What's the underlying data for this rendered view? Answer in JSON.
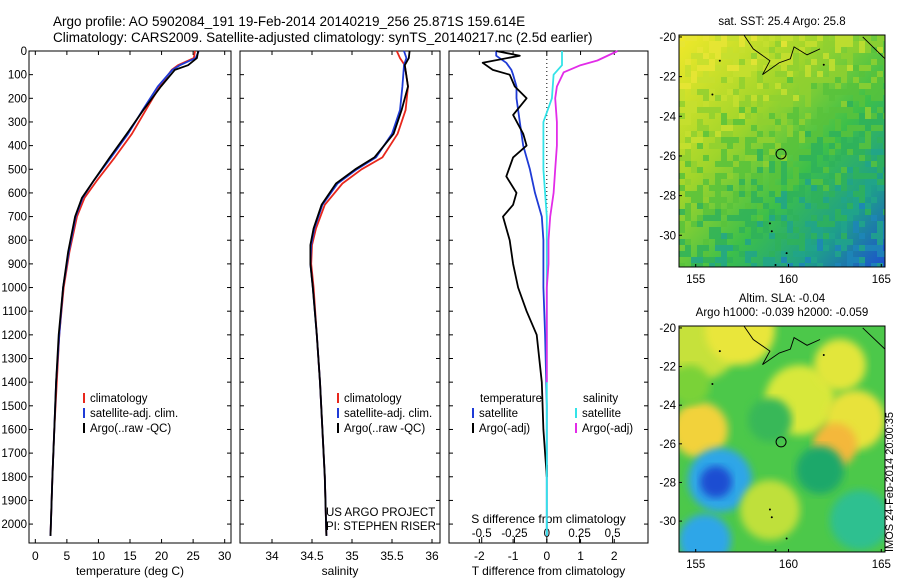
{
  "header": {
    "line1": "Argo profile: AO 5902084_191 19-Feb-2014 20140219_256 25.871S 159.614E",
    "line2": "Climatology: CARS2009. Satellite-adjusted climatology: synTS_20140217.nc (2.5d earlier)"
  },
  "footer": {
    "project": "US ARGO PROJECT",
    "pi": "PI: STEPHEN RISER",
    "stamp": "IMOS 24-Feb-2014 20:00:35"
  },
  "colors": {
    "climatology": "#e8271c",
    "satellite": "#1f3bd6",
    "argo": "#000000",
    "sal_satellite": "#33e3e8",
    "sal_argo": "#e22ce8",
    "marker": "#000000"
  },
  "chart_data": [
    {
      "type": "line",
      "panel": "temperature",
      "xlabel": "temperature (deg C)",
      "ylim": [
        2080,
        0
      ],
      "xlim": [
        -1,
        31
      ],
      "yticks": [
        0,
        100,
        200,
        300,
        400,
        500,
        600,
        700,
        800,
        900,
        1000,
        1100,
        1200,
        1300,
        1400,
        1500,
        1600,
        1700,
        1800,
        1900,
        2000
      ],
      "xticks": [
        0,
        5,
        10,
        15,
        20,
        25,
        30
      ],
      "legend": [
        "climatology",
        "satellite-adj. clim.",
        "Argo(..raw -QC)"
      ],
      "series": [
        {
          "name": "climatology",
          "color": "#e8271c",
          "points": [
            [
              25.3,
              0
            ],
            [
              25.1,
              30
            ],
            [
              22.6,
              60
            ],
            [
              21.6,
              80
            ],
            [
              19.7,
              150
            ],
            [
              17.5,
              250
            ],
            [
              15.3,
              350
            ],
            [
              12.6,
              450
            ],
            [
              9.7,
              550
            ],
            [
              7.8,
              620
            ],
            [
              6.6,
              700
            ],
            [
              5.4,
              850
            ],
            [
              4.5,
              1000
            ],
            [
              3.8,
              1200
            ],
            [
              3.4,
              1400
            ],
            [
              3.0,
              1600
            ],
            [
              2.7,
              1800
            ],
            [
              2.4,
              2050
            ]
          ]
        },
        {
          "name": "satellite-adj. clim.",
          "color": "#1f3bd6",
          "points": [
            [
              25.9,
              0
            ],
            [
              25.4,
              30
            ],
            [
              22.9,
              60
            ],
            [
              21.7,
              80
            ],
            [
              19.4,
              150
            ],
            [
              17.0,
              250
            ],
            [
              14.7,
              350
            ],
            [
              12.0,
              450
            ],
            [
              9.2,
              550
            ],
            [
              7.5,
              620
            ],
            [
              6.4,
              700
            ],
            [
              5.3,
              850
            ],
            [
              4.4,
              1000
            ],
            [
              3.8,
              1200
            ],
            [
              3.3,
              1400
            ],
            [
              3.0,
              1600
            ],
            [
              2.7,
              1800
            ],
            [
              2.4,
              2050
            ]
          ]
        },
        {
          "name": "Argo(..raw -QC)",
          "color": "#000000",
          "points": [
            [
              25.8,
              0
            ],
            [
              25.6,
              30
            ],
            [
              24.2,
              60
            ],
            [
              22.1,
              80
            ],
            [
              19.9,
              150
            ],
            [
              17.1,
              250
            ],
            [
              14.5,
              350
            ],
            [
              11.8,
              450
            ],
            [
              9.2,
              550
            ],
            [
              7.4,
              620
            ],
            [
              6.3,
              700
            ],
            [
              5.2,
              850
            ],
            [
              4.4,
              1000
            ],
            [
              3.7,
              1200
            ],
            [
              3.3,
              1400
            ],
            [
              3.0,
              1600
            ],
            [
              2.7,
              1800
            ],
            [
              2.4,
              2050
            ]
          ]
        }
      ]
    },
    {
      "type": "line",
      "panel": "salinity",
      "xlabel": "salinity",
      "ylim": [
        2080,
        0
      ],
      "xlim": [
        33.6,
        36.1
      ],
      "xticks": [
        34,
        34.5,
        35,
        35.5,
        36
      ],
      "legend": [
        "climatology",
        "satellite-adj. clim.",
        "Argo(..raw -QC)"
      ],
      "series": [
        {
          "name": "climatology",
          "color": "#e8271c",
          "points": [
            [
              35.56,
              0
            ],
            [
              35.6,
              30
            ],
            [
              35.66,
              60
            ],
            [
              35.7,
              150
            ],
            [
              35.67,
              250
            ],
            [
              35.57,
              350
            ],
            [
              35.38,
              450
            ],
            [
              35.12,
              500
            ],
            [
              34.88,
              560
            ],
            [
              34.66,
              650
            ],
            [
              34.55,
              750
            ],
            [
              34.5,
              820
            ],
            [
              34.49,
              900
            ],
            [
              34.52,
              1000
            ],
            [
              34.56,
              1200
            ],
            [
              34.6,
              1400
            ],
            [
              34.63,
              1600
            ],
            [
              34.66,
              1800
            ],
            [
              34.68,
              2050
            ]
          ]
        },
        {
          "name": "satellite-adj. clim.",
          "color": "#1f3bd6",
          "points": [
            [
              35.65,
              0
            ],
            [
              35.68,
              30
            ],
            [
              35.65,
              60
            ],
            [
              35.63,
              150
            ],
            [
              35.6,
              250
            ],
            [
              35.5,
              350
            ],
            [
              35.3,
              450
            ],
            [
              35.06,
              500
            ],
            [
              34.82,
              560
            ],
            [
              34.63,
              650
            ],
            [
              34.53,
              750
            ],
            [
              34.49,
              820
            ],
            [
              34.48,
              900
            ],
            [
              34.51,
              1000
            ],
            [
              34.56,
              1200
            ],
            [
              34.6,
              1400
            ],
            [
              34.63,
              1600
            ],
            [
              34.66,
              1800
            ],
            [
              34.68,
              2050
            ]
          ]
        },
        {
          "name": "Argo(..raw -QC)",
          "color": "#000000",
          "points": [
            [
              35.72,
              0
            ],
            [
              35.71,
              30
            ],
            [
              35.66,
              60
            ],
            [
              35.7,
              150
            ],
            [
              35.62,
              250
            ],
            [
              35.52,
              350
            ],
            [
              35.28,
              450
            ],
            [
              35.04,
              500
            ],
            [
              34.8,
              560
            ],
            [
              34.62,
              650
            ],
            [
              34.52,
              750
            ],
            [
              34.48,
              820
            ],
            [
              34.48,
              900
            ],
            [
              34.51,
              1000
            ],
            [
              34.56,
              1200
            ],
            [
              34.6,
              1400
            ],
            [
              34.63,
              1600
            ],
            [
              34.66,
              1800
            ],
            [
              34.68,
              2050
            ]
          ]
        }
      ]
    },
    {
      "type": "line",
      "panel": "difference",
      "xlabel": "T difference from climatology",
      "xlabel_top": "S difference from climatology",
      "ylim": [
        2080,
        0
      ],
      "xlim": [
        -2.9,
        3.0
      ],
      "xticks": [
        -2,
        -1,
        0,
        1,
        2
      ],
      "top_ticks": [
        {
          "label": "-0.5",
          "t": -1.93
        },
        {
          "label": "-0.25",
          "t": -0.96
        },
        {
          "label": "0",
          "t": 0
        },
        {
          "label": "0.25",
          "t": 0.97
        },
        {
          "label": "0.5",
          "t": 1.95
        }
      ],
      "legend_t": [
        "temperature",
        "satellite",
        "Argo(-adj)"
      ],
      "legend_s": [
        "salinity",
        "satellite",
        "Argo(-adj)"
      ],
      "series": [
        {
          "name": "satellite",
          "color": "#1f3bd6",
          "points": [
            [
              -1.5,
              0
            ],
            [
              -1.5,
              20
            ],
            [
              -1.2,
              50
            ],
            [
              -1.05,
              80
            ],
            [
              -1.0,
              100
            ],
            [
              -0.9,
              150
            ],
            [
              -0.9,
              200
            ],
            [
              -0.8,
              300
            ],
            [
              -0.7,
              400
            ],
            [
              -0.5,
              500
            ],
            [
              -0.35,
              600
            ],
            [
              -0.15,
              700
            ],
            [
              -0.1,
              800
            ],
            [
              -0.1,
              1000
            ],
            [
              -0.05,
              1200
            ],
            [
              0,
              1500
            ],
            [
              0,
              1800
            ],
            [
              0,
              2050
            ]
          ]
        },
        {
          "name": "Argo(-adj)",
          "color": "#000000",
          "points": [
            [
              -1.5,
              0
            ],
            [
              -0.8,
              20
            ],
            [
              -1.9,
              50
            ],
            [
              -1.6,
              80
            ],
            [
              -1.1,
              100
            ],
            [
              -0.95,
              150
            ],
            [
              -0.6,
              200
            ],
            [
              -1.0,
              270
            ],
            [
              -0.7,
              350
            ],
            [
              -0.6,
              400
            ],
            [
              -1.0,
              450
            ],
            [
              -1.2,
              530
            ],
            [
              -0.9,
              600
            ],
            [
              -1.0,
              650
            ],
            [
              -1.3,
              700
            ],
            [
              -1.1,
              800
            ],
            [
              -1.0,
              900
            ],
            [
              -0.85,
              1000
            ],
            [
              -0.6,
              1100
            ],
            [
              -0.3,
              1200
            ],
            [
              -0.15,
              1400
            ],
            [
              -0.1,
              1600
            ],
            [
              0,
              1800
            ],
            [
              0,
              1750
            ]
          ]
        },
        {
          "name": "salinity satellite",
          "color": "#33e3e8",
          "points": [
            [
              0.45,
              0
            ],
            [
              0.45,
              60
            ],
            [
              0.2,
              100
            ],
            [
              0.15,
              200
            ],
            [
              -0.1,
              300
            ],
            [
              -0.1,
              400
            ],
            [
              -0.1,
              500
            ],
            [
              -0.05,
              600
            ],
            [
              0,
              700
            ],
            [
              0,
              800
            ],
            [
              0,
              1000
            ],
            [
              0,
              1200
            ],
            [
              0,
              1400
            ],
            [
              0,
              1600
            ],
            [
              0,
              1800
            ],
            [
              0,
              2050
            ]
          ]
        },
        {
          "name": "salinity Argo(-adj)",
          "color": "#e22ce8",
          "points": [
            [
              2.1,
              0
            ],
            [
              1.5,
              40
            ],
            [
              1.0,
              60
            ],
            [
              0.5,
              90
            ],
            [
              0.3,
              150
            ],
            [
              0.25,
              200
            ],
            [
              0.3,
              300
            ],
            [
              0.3,
              400
            ],
            [
              0.25,
              500
            ],
            [
              0.2,
              600
            ],
            [
              0.1,
              700
            ],
            [
              0.05,
              800
            ],
            [
              0.05,
              900
            ],
            [
              0,
              1000
            ],
            [
              0,
              1200
            ],
            [
              0,
              1400
            ]
          ]
        }
      ]
    },
    {
      "type": "heatmap",
      "panel": "sst_map",
      "title": "sat. SST: 25.4  Argo: 25.8",
      "xlim": [
        154.1,
        165.2
      ],
      "ylim": [
        -31.6,
        -19.9
      ],
      "xticks": [
        155,
        160,
        165
      ],
      "yticks": [
        -20,
        -22,
        -24,
        -26,
        -28,
        -30
      ],
      "marker": {
        "lon": 159.6,
        "lat": -25.9
      }
    },
    {
      "type": "heatmap",
      "panel": "sla_map",
      "title1": "Altim. SLA: -0.04",
      "title2": "Argo h1000: -0.039  h2000: -0.059",
      "xlim": [
        154.1,
        165.2
      ],
      "ylim": [
        -31.6,
        -19.9
      ],
      "xticks": [
        155,
        160,
        165
      ],
      "yticks": [
        -20,
        -22,
        -24,
        -26,
        -28,
        -30
      ],
      "marker": {
        "lon": 159.6,
        "lat": -25.9
      }
    }
  ]
}
